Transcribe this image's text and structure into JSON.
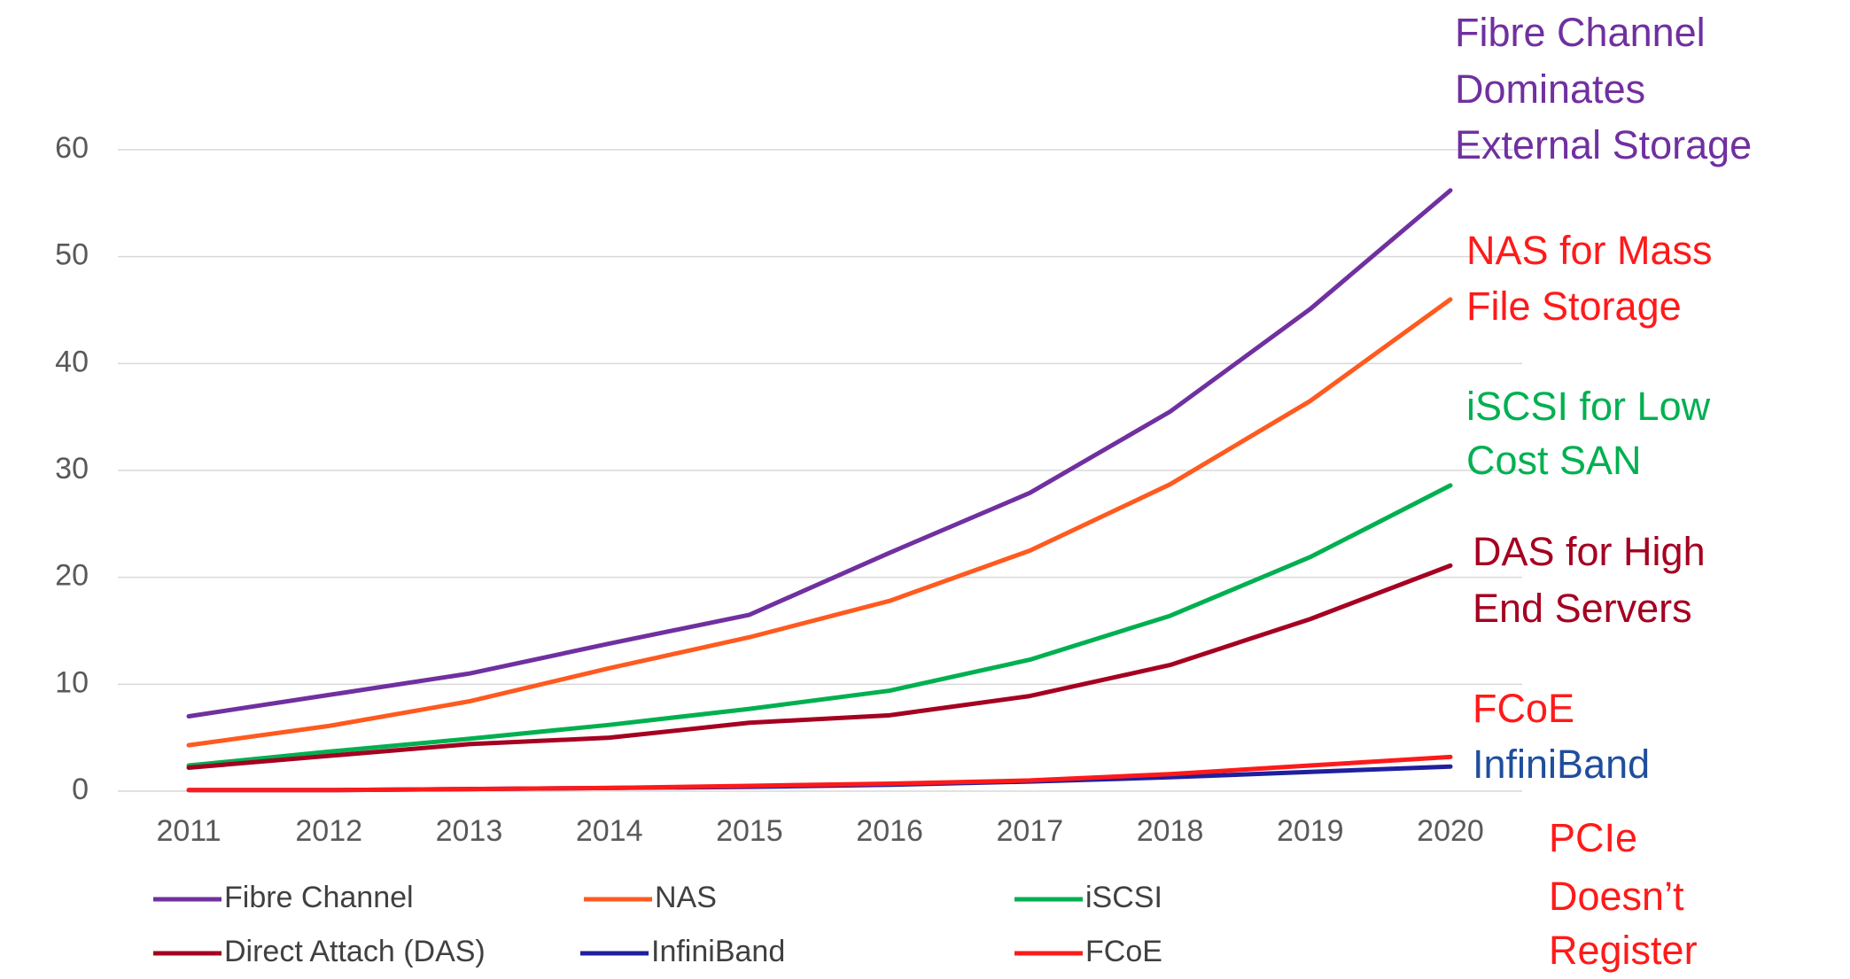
{
  "chart_data": {
    "type": "line",
    "categories": [
      "2011",
      "2012",
      "2013",
      "2014",
      "2015",
      "2016",
      "2017",
      "2018",
      "2019",
      "2020"
    ],
    "ylim": [
      0,
      60
    ],
    "yticks": [
      0,
      10,
      20,
      30,
      40,
      50,
      60
    ],
    "grid": true,
    "series": [
      {
        "name": "Fibre Channel",
        "color": "#7030a0",
        "values": [
          7,
          9,
          11,
          13.8,
          16.5,
          22.3,
          27.9,
          35.5,
          45.1,
          56.2
        ]
      },
      {
        "name": "NAS",
        "color": "#ff5a1f",
        "values": [
          4.3,
          6.1,
          8.4,
          11.5,
          14.4,
          17.8,
          22.5,
          28.7,
          36.5,
          46
        ]
      },
      {
        "name": "iSCSI",
        "color": "#00b050",
        "values": [
          2.4,
          3.7,
          4.9,
          6.2,
          7.7,
          9.4,
          12.3,
          16.4,
          21.9,
          28.6
        ]
      },
      {
        "name": "Direct Attach (DAS)",
        "color": "#a50021",
        "values": [
          2.2,
          3.3,
          4.4,
          5,
          6.4,
          7.1,
          8.9,
          11.8,
          16.1,
          21.1
        ]
      },
      {
        "name": "InfiniBand",
        "color": "#1f1f9f",
        "values": [
          0.1,
          0.1,
          0.2,
          0.3,
          0.4,
          0.6,
          0.9,
          1.3,
          1.8,
          2.3
        ]
      },
      {
        "name": "FCoE",
        "color": "#ff1a1a",
        "values": [
          0.1,
          0.1,
          0.2,
          0.3,
          0.5,
          0.7,
          1.0,
          1.6,
          2.4,
          3.2
        ]
      }
    ],
    "annotations": [
      {
        "lines": [
          "Fibre Channel",
          "Dominates",
          "External Storage"
        ],
        "color": "#7030a0"
      },
      {
        "lines": [
          "NAS for Mass",
          "File Storage"
        ],
        "color": "#ff1a1a"
      },
      {
        "lines": [
          "iSCSI for Low",
          "Cost SAN"
        ],
        "color": "#00b050"
      },
      {
        "lines": [
          "DAS for High",
          "End Servers"
        ],
        "color": "#a50021"
      },
      {
        "lines": [
          "FCoE"
        ],
        "color": "#ff1a1a"
      },
      {
        "lines": [
          "InfiniBand"
        ],
        "color": "#1f4e9c"
      },
      {
        "lines": [
          "PCIe",
          "Doesn’t",
          "Register"
        ],
        "color": "#ff1a1a"
      }
    ]
  }
}
